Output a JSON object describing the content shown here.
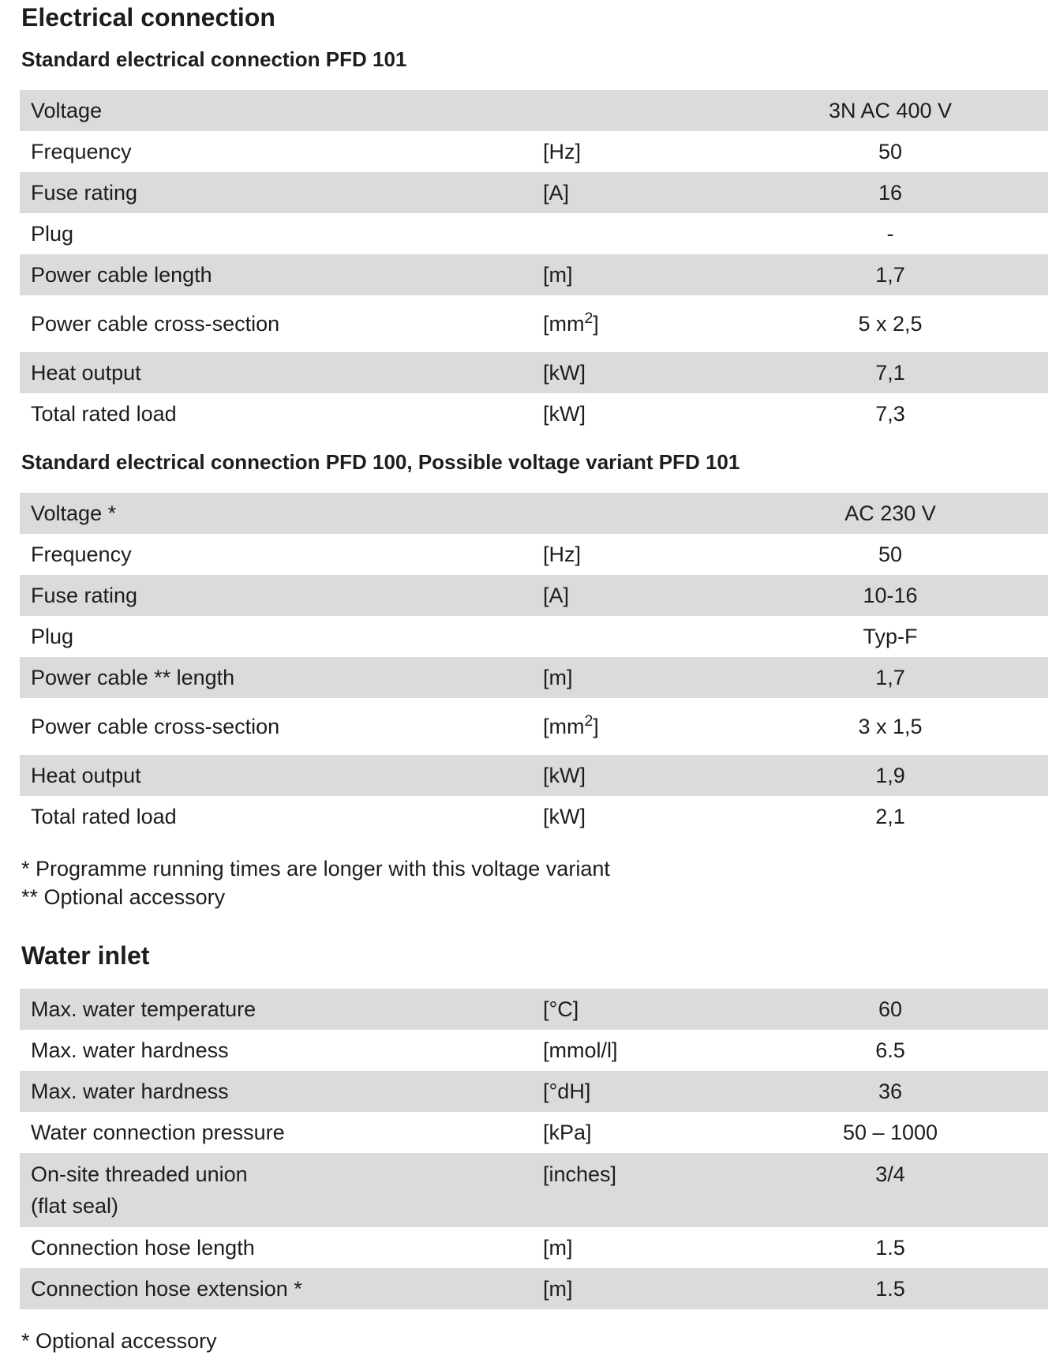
{
  "header": {
    "title": "Electrical connection"
  },
  "sections": {
    "pfd101_heading": "Standard electrical connection PFD 101",
    "pfd100_heading": "Standard electrical connection PFD 100, Possible voltage variant PFD 101",
    "water_heading": "Water inlet"
  },
  "tables": {
    "pfd101": {
      "rows": [
        {
          "label": "Voltage",
          "unit": "",
          "value": "3N AC 400 V"
        },
        {
          "label": "Frequency",
          "unit": "[Hz]",
          "value": "50"
        },
        {
          "label": "Fuse rating",
          "unit": "[A]",
          "value": "16"
        },
        {
          "label": "Plug",
          "unit": "",
          "value": "-"
        },
        {
          "label": "Power cable length",
          "unit": "[m]",
          "value": "1,7"
        },
        {
          "label": "Power cable cross-section",
          "unit_pre": "[mm",
          "unit_sup": "2",
          "unit_post": "]",
          "value": "5 x 2,5"
        },
        {
          "label": "Heat output",
          "unit": "[kW]",
          "value": "7,1"
        },
        {
          "label": "Total rated load",
          "unit": "[kW]",
          "value": "7,3"
        }
      ]
    },
    "pfd100": {
      "rows": [
        {
          "label": "Voltage *",
          "unit": "",
          "value": "AC 230 V"
        },
        {
          "label": "Frequency",
          "unit": "[Hz]",
          "value": "50"
        },
        {
          "label": "Fuse rating",
          "unit": "[A]",
          "value": "10-16"
        },
        {
          "label": "Plug",
          "unit": "",
          "value": "Typ-F"
        },
        {
          "label": "Power cable ** length",
          "unit": "[m]",
          "value": "1,7"
        },
        {
          "label": "Power cable cross-section",
          "unit_pre": "[mm",
          "unit_sup": "2",
          "unit_post": "]",
          "value": "3 x 1,5"
        },
        {
          "label": "Heat output",
          "unit": "[kW]",
          "value": "1,9"
        },
        {
          "label": "Total rated load",
          "unit": "[kW]",
          "value": "2,1"
        }
      ]
    },
    "water": {
      "rows": [
        {
          "label": "Max. water temperature",
          "unit": "[°C]",
          "value": "60"
        },
        {
          "label": "Max. water hardness",
          "unit": "[mmol/l]",
          "value": "6.5"
        },
        {
          "label": "Max. water hardness",
          "unit": "[°dH]",
          "value": "36"
        },
        {
          "label": "Water connection pressure",
          "unit": "[kPa]",
          "value": "50 – 1000"
        },
        {
          "label_line1": "On-site threaded union",
          "label_line2": "(flat seal)",
          "unit": "[inches]",
          "value": "3/4"
        },
        {
          "label": "Connection hose length",
          "unit": "[m]",
          "value": "1.5"
        },
        {
          "label": "Connection hose extension *",
          "unit": "[m]",
          "value": "1.5"
        }
      ]
    }
  },
  "footnotes": {
    "electrical": [
      "* Programme running times are longer with this voltage variant",
      "** Optional accessory"
    ],
    "water": "* Optional accessory"
  },
  "colors": {
    "row_stripe": "#dadbdc",
    "text": "#1d1d1b"
  }
}
